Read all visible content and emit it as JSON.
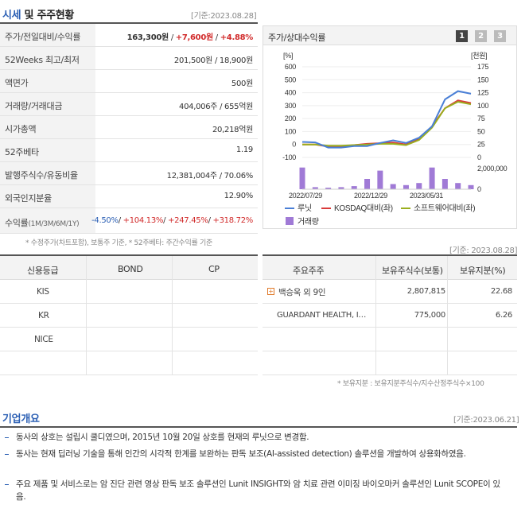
{
  "market": {
    "title_prefix": "시세",
    "title_rest": " 및 주주현황",
    "date": "[기준:2023.08.28]",
    "rows": [
      {
        "label": "주가/전일대비/수익률",
        "value": "163,300원",
        "change": "+7,600원",
        "pct": "+4.88%"
      },
      {
        "label": "52Weeks 최고/최저",
        "value": "201,500원 / 18,900원"
      },
      {
        "label": "액면가",
        "value": "500원"
      },
      {
        "label": "거래량/거래대금",
        "value": "404,006주 / 655억원"
      },
      {
        "label": "시가총액",
        "value": "20,218억원"
      },
      {
        "label": "52주베타",
        "value": "1.19"
      },
      {
        "label": "발행주식수/유동비율",
        "value": "12,381,004주 / 70.06%"
      },
      {
        "label": "외국인지분율",
        "value": "12.90%"
      }
    ],
    "returns": {
      "label": "수익률",
      "periods": "(1M/3M/6M/1Y)",
      "r1": "-4.50%",
      "r2": "+104.13%",
      "r3": "+247.45%",
      "r4": "+318.72%"
    },
    "footnote": "* 수정주가(차트포함), 보통주 기준, * 52주베타: 주간수익률 기준"
  },
  "chart_panel": {
    "title": "주가/상대수익률",
    "pages": [
      "1",
      "2",
      "3"
    ],
    "left_unit": "[%]",
    "right_unit": "[천원]",
    "left_ticks": [
      "600",
      "500",
      "400",
      "300",
      "200",
      "100",
      "0",
      "-100"
    ],
    "right_ticks": [
      "175",
      "150",
      "125",
      "100",
      "75",
      "50",
      "25",
      "0"
    ],
    "volume_tick_top": "2,000,000",
    "volume_tick_bottom": "0",
    "x_ticks": [
      "2022/07/29",
      "2022/12/29",
      "2023/05/31"
    ],
    "legend": {
      "s1": "루닛",
      "s2": "KOSDAQ대비(좌)",
      "s3": "소프트웨어대비(좌)",
      "s4": "거래량"
    },
    "colors": {
      "s1": "#4a7fd6",
      "s2": "#d93a3a",
      "s3": "#9aae1e",
      "vol": "#a07ad6"
    }
  },
  "chart_data": {
    "type": "line",
    "x": [
      "2022/07",
      "2022/08",
      "2022/09",
      "2022/10",
      "2022/11",
      "2022/12",
      "2023/01",
      "2023/02",
      "2023/03",
      "2023/04",
      "2023/05",
      "2023/06",
      "2023/07",
      "2023/08"
    ],
    "series": [
      {
        "name": "루닛",
        "axis": "right",
        "values": [
          30,
          29,
          19,
          19,
          22,
          22,
          28,
          33,
          28,
          38,
          60,
          112,
          128,
          123
        ]
      },
      {
        "name": "KOSDAQ대비(좌)",
        "axis": "left",
        "values": [
          0,
          0,
          -15,
          -15,
          -5,
          5,
          10,
          15,
          0,
          40,
          140,
          280,
          340,
          320
        ]
      },
      {
        "name": "소프트웨어대비(좌)",
        "axis": "left",
        "values": [
          0,
          0,
          -10,
          -10,
          -5,
          0,
          5,
          5,
          -5,
          35,
          130,
          280,
          330,
          310
        ]
      }
    ],
    "volume": [
      2600000,
      200000,
      150000,
      200000,
      300000,
      1000000,
      1800000,
      500000,
      400000,
      600000,
      2300000,
      1000000,
      600000,
      400000
    ],
    "ylim_left": [
      -100,
      600
    ],
    "ylim_right": [
      0,
      175
    ]
  },
  "rating": {
    "headers": [
      "신용등급",
      "BOND",
      "CP"
    ],
    "rows": [
      "KIS",
      "KR",
      "NICE"
    ]
  },
  "holders": {
    "date": "[기준: 2023.08.28]",
    "headers": [
      "주요주주",
      "보유주식수(보통)",
      "보유지분(%)"
    ],
    "rows": [
      {
        "name": "백승욱 외 9인",
        "shares": "2,807,815",
        "pct": "22.68"
      },
      {
        "name": "GUARDANT HEALTH, I…",
        "shares": "775,000",
        "pct": "6.26"
      }
    ],
    "footnote": "* 보유지분 : 보유지분주식수/지수산정주식수×100"
  },
  "overview": {
    "title": "기업개요",
    "date": "[기준:2023.06.21]",
    "items": [
      "동사의 상호는 설립시 쿨디였으며, 2015년 10월 20일 상호를 현재의 루닛으로 변경함.",
      "동사는 현재 딥러닝 기술을 통해 인간의 시각적 한계를 보완하는 판독 보조(AI-assisted detection) 솔루션을 개발하여 상용화하였음.",
      "주요 제품 및 서비스로는 암 진단 관련 영상 판독 보조 솔루션인 Lunit INSIGHT와 암 치료 관련 이미징 바이오마커 솔루션인 Lunit SCOPE이 있음."
    ]
  }
}
